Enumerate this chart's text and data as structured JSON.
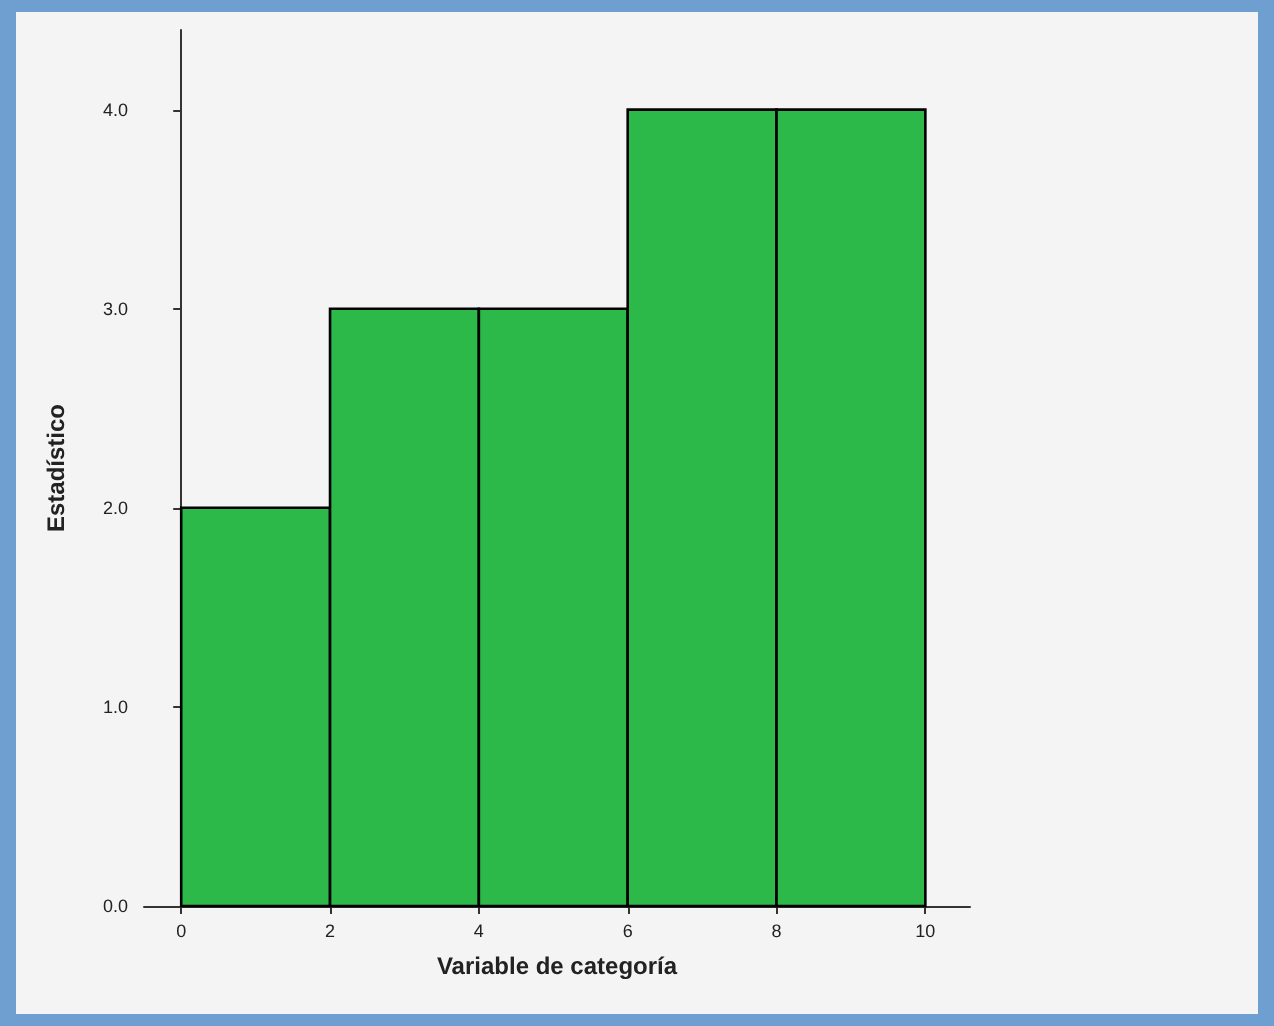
{
  "chart_data": {
    "type": "histogram",
    "xlabel": "Variable de categoría",
    "ylabel": "Estadístico",
    "bins": [
      0,
      2,
      4,
      6,
      8,
      10
    ],
    "values": [
      2,
      3,
      3,
      4,
      4
    ],
    "color": "#2db84a",
    "xlim": [
      -0.5,
      10.6
    ],
    "xticks": [
      0,
      2,
      4,
      6,
      8,
      10
    ],
    "ylim": [
      0,
      4.4
    ],
    "yticks": [
      {
        "value": 0,
        "label": "0.0"
      },
      {
        "value": 1,
        "label": "1.0"
      },
      {
        "value": 2,
        "label": "2.0"
      },
      {
        "value": 3,
        "label": "3.0"
      },
      {
        "value": 4,
        "label": "4.0"
      }
    ]
  }
}
